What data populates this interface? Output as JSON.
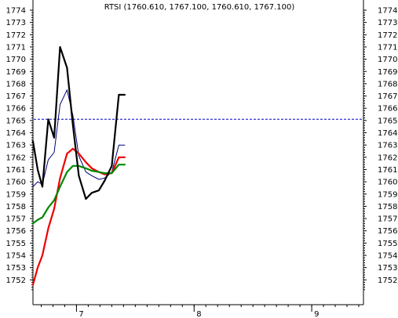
{
  "chart_data": {
    "type": "line",
    "title": "RTSI (1760.610, 1767.100, 1760.610, 1767.100)",
    "xlabel": "",
    "ylabel": "",
    "ylim": [
      1751,
      1775
    ],
    "y_ticks": [
      1752,
      1753,
      1754,
      1755,
      1756,
      1757,
      1758,
      1759,
      1760,
      1761,
      1762,
      1763,
      1764,
      1765,
      1766,
      1767,
      1768,
      1769,
      1770,
      1771,
      1772,
      1773,
      1774
    ],
    "x_range": [
      6.63,
      9.44
    ],
    "x_ticks": [
      {
        "x": 7,
        "label": "7"
      },
      {
        "x": 8,
        "label": "8"
      },
      {
        "x": 9,
        "label": "9"
      }
    ],
    "grid": false,
    "reference_line": {
      "y": 1765.1,
      "color": "#0000cc",
      "style": "dashed"
    },
    "series": [
      {
        "color": "#000000",
        "width": 2.2,
        "x": [
          6.63,
          6.67,
          6.71,
          6.76,
          6.81,
          6.86,
          6.92,
          6.97,
          7.02,
          7.08,
          7.13,
          7.19,
          7.24,
          7.3,
          7.36,
          7.41
        ],
        "y": [
          1763.3,
          1761.0,
          1759.6,
          1765.1,
          1763.6,
          1771.0,
          1769.3,
          1764.6,
          1760.5,
          1758.6,
          1759.1,
          1759.3,
          1760.1,
          1761.3,
          1767.1,
          1767.1
        ]
      },
      {
        "color": "#00007a",
        "width": 1.0,
        "x": [
          6.63,
          6.67,
          6.71,
          6.76,
          6.81,
          6.86,
          6.92,
          6.97,
          7.02,
          7.08,
          7.13,
          7.19,
          7.24,
          7.3,
          7.36,
          7.41
        ],
        "y": [
          1759.6,
          1760.0,
          1759.8,
          1761.8,
          1762.4,
          1766.3,
          1767.5,
          1765.4,
          1762.1,
          1760.8,
          1760.5,
          1760.2,
          1760.3,
          1760.8,
          1763.0,
          1763.0
        ]
      },
      {
        "color": "#ee0000",
        "width": 2.2,
        "x": [
          6.63,
          6.67,
          6.71,
          6.76,
          6.81,
          6.86,
          6.92,
          6.97,
          7.02,
          7.08,
          7.13,
          7.19,
          7.24,
          7.3,
          7.36,
          7.41
        ],
        "y": [
          1751.6,
          1753.0,
          1754.0,
          1756.2,
          1757.8,
          1760.3,
          1762.3,
          1762.7,
          1762.3,
          1761.6,
          1761.1,
          1760.8,
          1760.6,
          1760.7,
          1762.0,
          1762.0
        ]
      },
      {
        "color": "#008800",
        "width": 2.2,
        "x": [
          6.63,
          6.67,
          6.71,
          6.76,
          6.81,
          6.86,
          6.92,
          6.97,
          7.02,
          7.08,
          7.13,
          7.19,
          7.24,
          7.3,
          7.36,
          7.41
        ],
        "y": [
          1756.6,
          1756.9,
          1757.1,
          1757.9,
          1758.5,
          1759.6,
          1760.8,
          1761.3,
          1761.3,
          1761.1,
          1760.9,
          1760.8,
          1760.7,
          1760.7,
          1761.4,
          1761.4
        ]
      }
    ]
  }
}
